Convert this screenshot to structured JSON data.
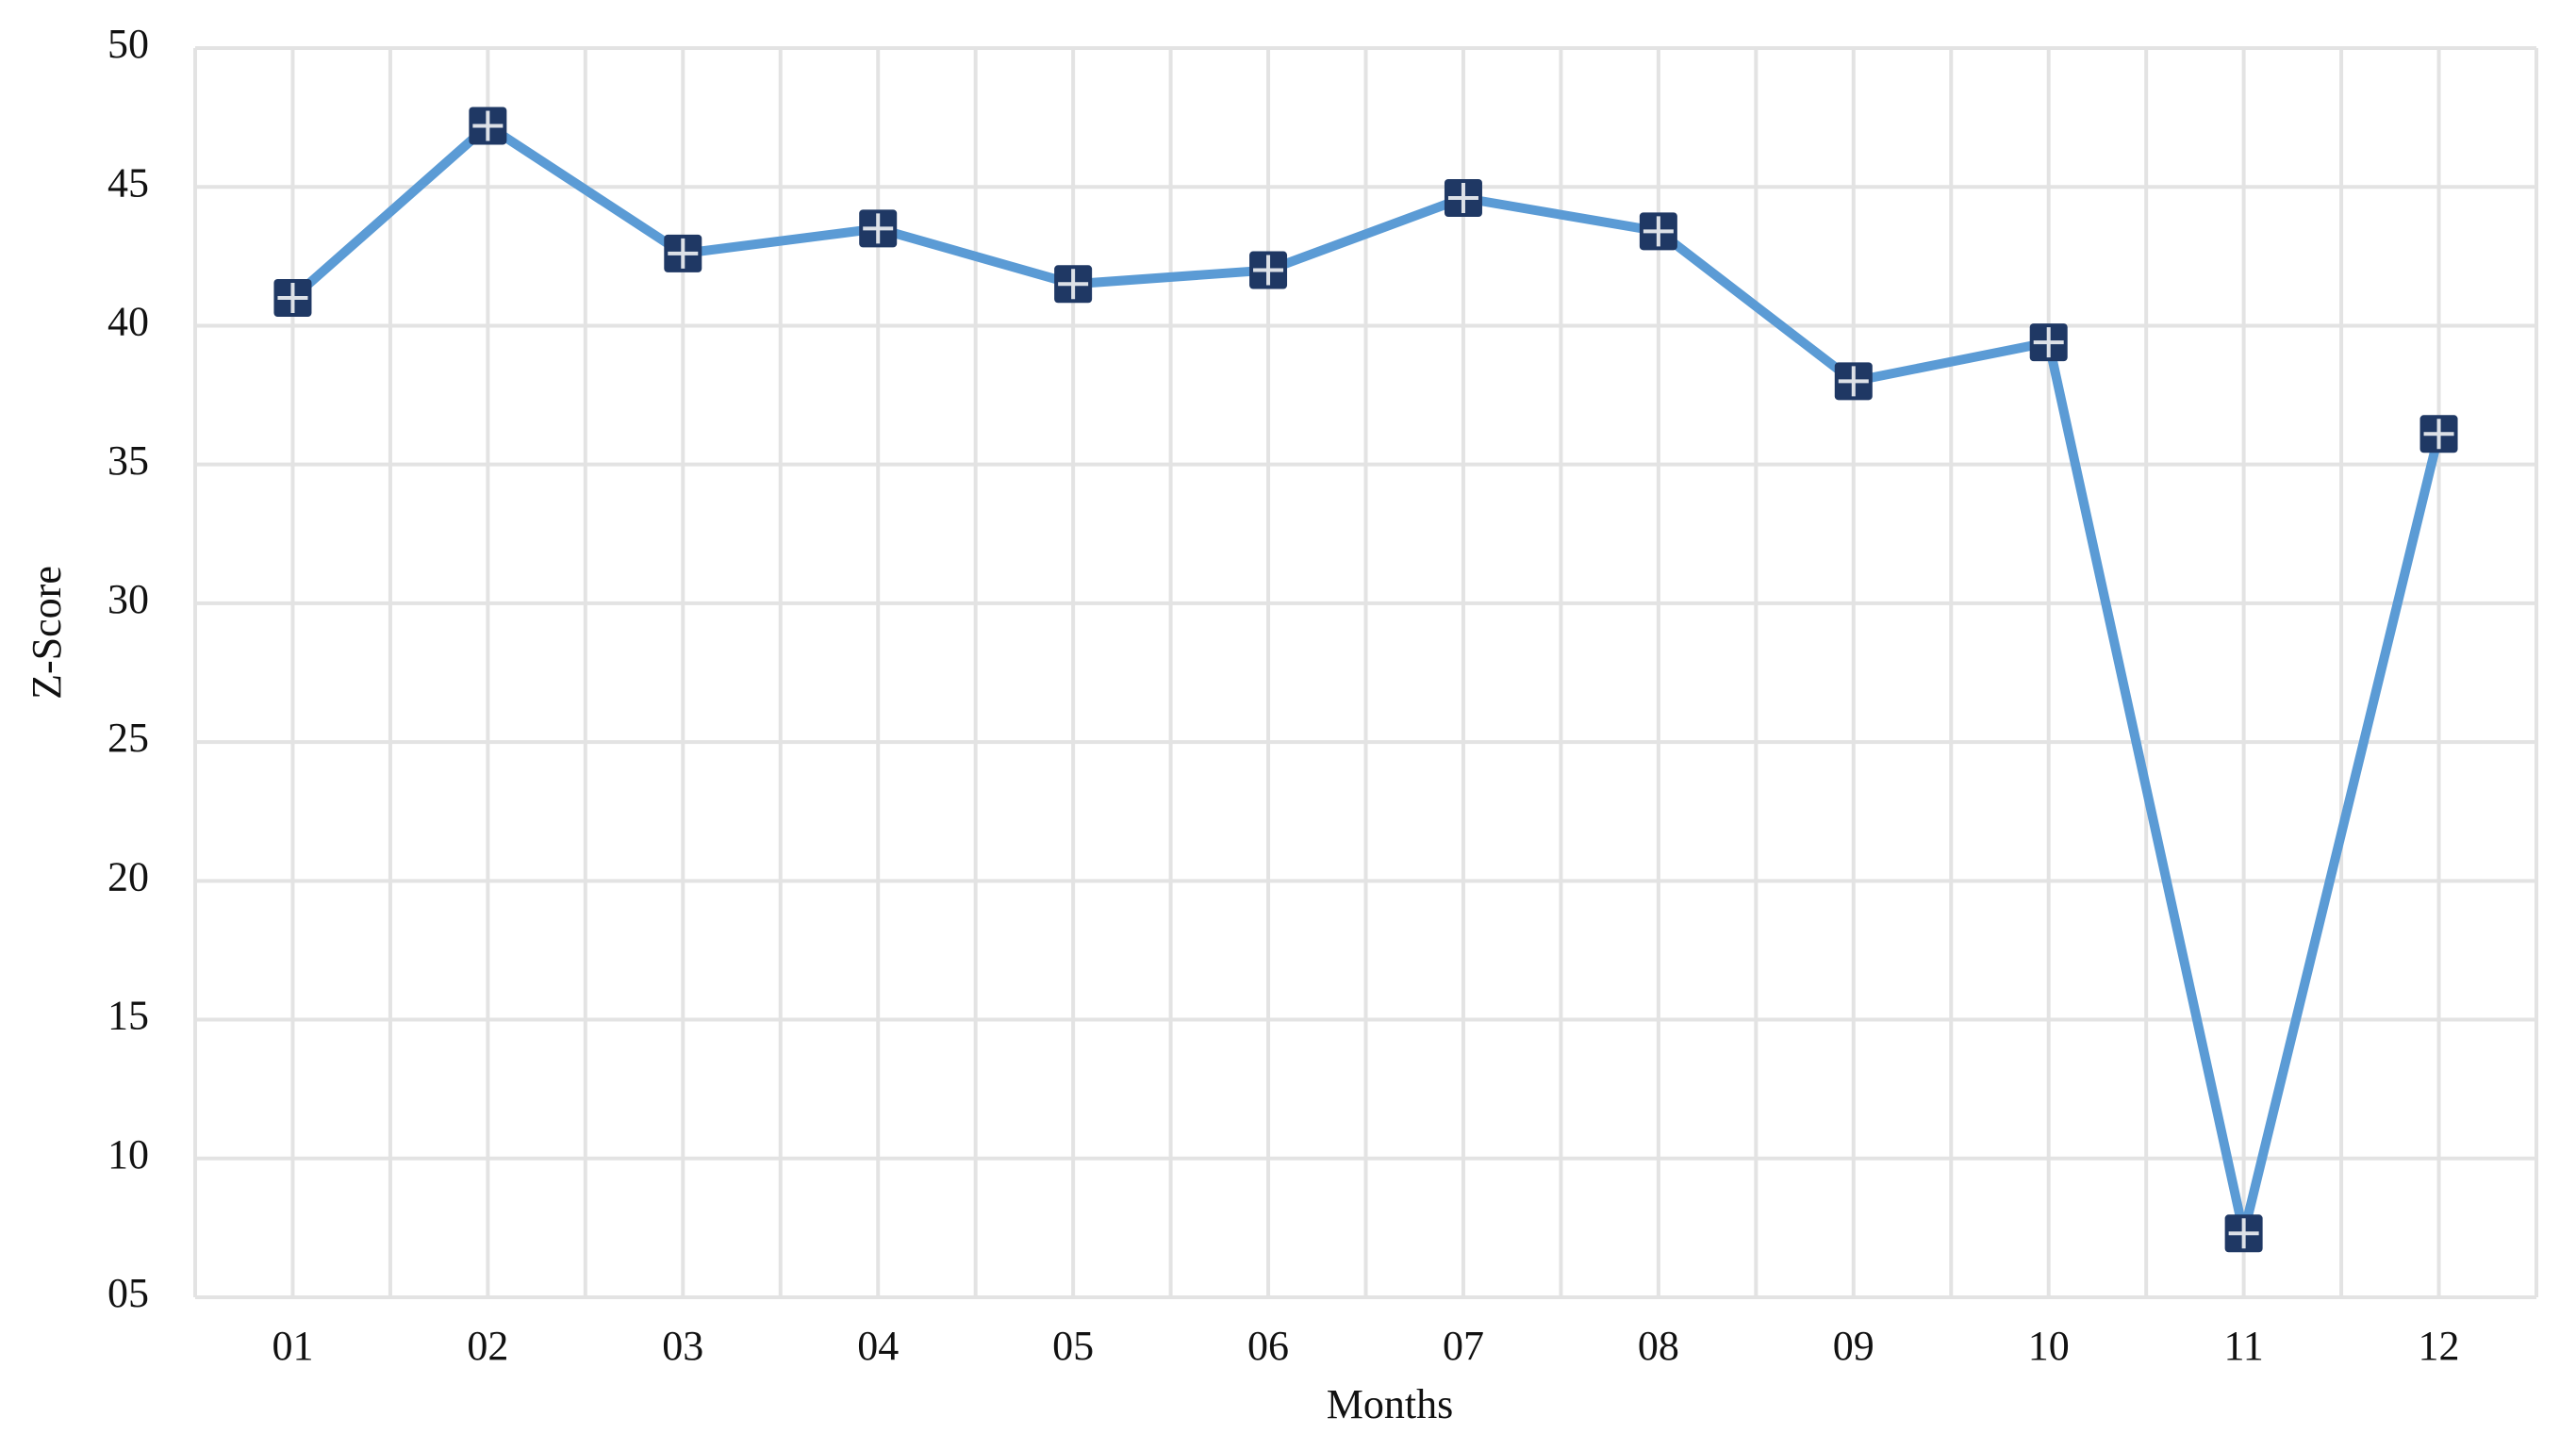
{
  "chart_data": {
    "type": "line",
    "x_label": "Months",
    "y_label": "Z-Score",
    "categories": [
      "01",
      "02",
      "03",
      "04",
      "05",
      "06",
      "07",
      "08",
      "09",
      "10",
      "11",
      "12"
    ],
    "values": [
      41.0,
      47.2,
      42.6,
      43.5,
      41.5,
      42.0,
      44.6,
      43.4,
      38.0,
      39.4,
      7.3,
      36.1
    ],
    "color": "#5b9bd5",
    "marker_color": "#1f3864",
    "ylim": [
      5,
      50
    ],
    "yticks": [
      {
        "value": 5,
        "label": "05"
      },
      10,
      15,
      20,
      25,
      30,
      35,
      40,
      45,
      50
    ],
    "grid": true
  }
}
